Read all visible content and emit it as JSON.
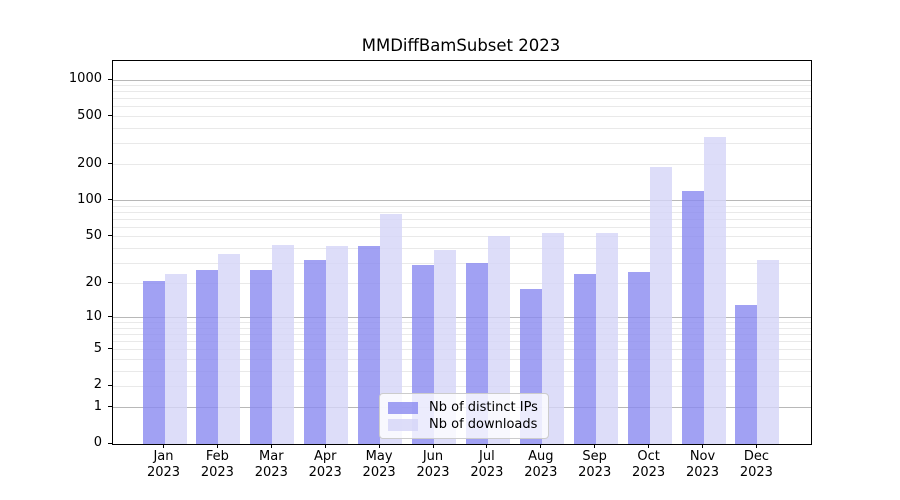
{
  "chart_data": {
    "type": "bar",
    "title": "MMDiffBamSubset 2023",
    "categories": [
      "Jan\n2023",
      "Feb\n2023",
      "Mar\n2023",
      "Apr\n2023",
      "May\n2023",
      "Jun\n2023",
      "Jul\n2023",
      "Aug\n2023",
      "Sep\n2023",
      "Oct\n2023",
      "Nov\n2023",
      "Dec\n2023"
    ],
    "series": [
      {
        "name": "Nb of distinct IPs",
        "color": "#8989f0",
        "alpha": 0.8,
        "values": [
          21,
          26,
          26,
          32,
          42,
          29,
          30,
          18,
          24,
          25,
          122,
          13
        ]
      },
      {
        "name": "Nb of downloads",
        "color": "#d4d4f7",
        "alpha": 0.8,
        "values": [
          24,
          36,
          43,
          42,
          78,
          39,
          51,
          54,
          54,
          193,
          337,
          32
        ]
      }
    ],
    "xlabel": "",
    "ylabel": "",
    "y_ticks": [
      0,
      1,
      2,
      5,
      10,
      20,
      50,
      100,
      200,
      500,
      1000
    ],
    "y_scale": "log10(1+x)",
    "ylim": [
      0,
      1450
    ],
    "grid": "horizontal only; light minor lines at 2-9,20-90,200-900; darker major lines at 1,10,100,1000",
    "legend_position": "inside plot, lower center-right",
    "colors": {
      "distinct_ips_bar": "#8989f0",
      "downloads_bar": "#d4d4f7",
      "major_grid": "#b8b8b8",
      "minor_grid": "#e9e9e9",
      "spine": "#000000",
      "legend_border": "#cccccc"
    }
  }
}
